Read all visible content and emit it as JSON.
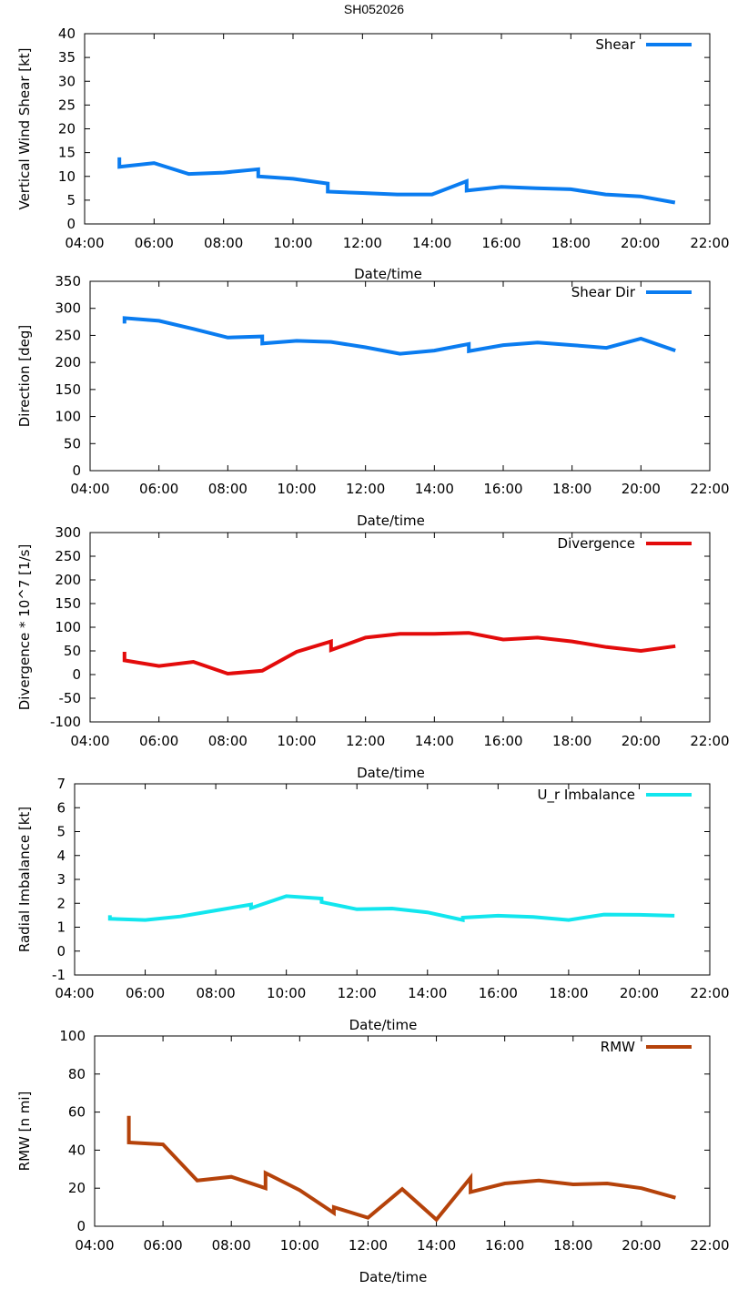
{
  "title": "SH052026",
  "colors": {
    "shear": "#0a7cf0",
    "divergence": "#e30b0b",
    "imbalance": "#12e6ee",
    "rmw": "#b5420a"
  },
  "chart_data": [
    {
      "type": "line",
      "ylabel": "Vertical Wind Shear [kt]",
      "xlabel": "Date/time",
      "xlim": [
        4,
        22
      ],
      "ylim": [
        0,
        40
      ],
      "xticks": [
        4,
        6,
        8,
        10,
        12,
        14,
        16,
        18,
        20,
        22
      ],
      "xtick_labels": [
        "04:00",
        "06:00",
        "08:00",
        "10:00",
        "12:00",
        "14:00",
        "16:00",
        "18:00",
        "20:00",
        "22:00"
      ],
      "yticks": [
        0,
        5,
        10,
        15,
        20,
        25,
        30,
        35,
        40
      ],
      "ytick_labels": [
        "0",
        "5",
        "10",
        "15",
        "20",
        "25",
        "30",
        "35",
        "40"
      ],
      "series": [
        {
          "name": "Shear",
          "color": "#0a7cf0",
          "x": [
            5.0,
            5.0,
            6.0,
            7.0,
            8.0,
            9.0,
            9.0,
            10.0,
            11.0,
            11.0,
            12.0,
            13.0,
            14.0,
            15.0,
            15.0,
            16.0,
            17.0,
            18.0,
            19.0,
            20.0,
            21.0
          ],
          "y": [
            14.0,
            12.0,
            12.8,
            10.5,
            10.8,
            11.5,
            10.0,
            9.5,
            8.5,
            6.8,
            6.5,
            6.2,
            6.2,
            9.0,
            7.0,
            7.8,
            7.5,
            7.3,
            6.2,
            5.8,
            4.5
          ]
        }
      ]
    },
    {
      "type": "line",
      "ylabel": "Direction [deg]",
      "xlabel": "Date/time",
      "xlim": [
        4,
        22
      ],
      "ylim": [
        0,
        350
      ],
      "xticks": [
        4,
        6,
        8,
        10,
        12,
        14,
        16,
        18,
        20,
        22
      ],
      "xtick_labels": [
        "04:00",
        "06:00",
        "08:00",
        "10:00",
        "12:00",
        "14:00",
        "16:00",
        "18:00",
        "20:00",
        "22:00"
      ],
      "yticks": [
        0,
        50,
        100,
        150,
        200,
        250,
        300,
        350
      ],
      "ytick_labels": [
        "0",
        "50",
        "100",
        "150",
        "200",
        "250",
        "300",
        "350"
      ],
      "series": [
        {
          "name": "Shear Dir",
          "color": "#0a7cf0",
          "x": [
            5.0,
            5.0,
            6.0,
            7.0,
            8.0,
            9.0,
            9.0,
            10.0,
            11.0,
            12.0,
            13.0,
            14.0,
            15.0,
            15.0,
            16.0,
            17.0,
            18.0,
            19.0,
            20.0,
            21.0
          ],
          "y": [
            272,
            282,
            277,
            262,
            246,
            248,
            235,
            240,
            238,
            228,
            216,
            222,
            234,
            221,
            232,
            237,
            232,
            227,
            244,
            222
          ]
        }
      ]
    },
    {
      "type": "line",
      "ylabel": "Divergence * 10^7 [1/s]",
      "xlabel": "Date/time",
      "xlim": [
        4,
        22
      ],
      "ylim": [
        -100,
        300
      ],
      "xticks": [
        4,
        6,
        8,
        10,
        12,
        14,
        16,
        18,
        20,
        22
      ],
      "xtick_labels": [
        "04:00",
        "06:00",
        "08:00",
        "10:00",
        "12:00",
        "14:00",
        "16:00",
        "18:00",
        "20:00",
        "22:00"
      ],
      "yticks": [
        -100,
        -50,
        0,
        50,
        100,
        150,
        200,
        250,
        300
      ],
      "ytick_labels": [
        "-100",
        "-50",
        "0",
        "50",
        "100",
        "150",
        "200",
        "250",
        "300"
      ],
      "series": [
        {
          "name": "Divergence",
          "color": "#e30b0b",
          "x": [
            5.0,
            5.0,
            6.0,
            7.0,
            8.0,
            9.0,
            10.0,
            11.0,
            11.0,
            12.0,
            13.0,
            14.0,
            15.0,
            16.0,
            17.0,
            18.0,
            19.0,
            20.0,
            21.0
          ],
          "y": [
            48,
            30,
            18,
            27,
            2,
            8,
            48,
            70,
            52,
            78,
            86,
            86,
            88,
            74,
            78,
            70,
            58,
            50,
            60
          ]
        }
      ]
    },
    {
      "type": "line",
      "ylabel": "Radial Imbalance [kt]",
      "xlabel": "Date/time",
      "xlim": [
        4,
        22
      ],
      "ylim": [
        -1,
        7
      ],
      "xticks": [
        4,
        6,
        8,
        10,
        12,
        14,
        16,
        18,
        20,
        22
      ],
      "xtick_labels": [
        "04:00",
        "06:00",
        "08:00",
        "10:00",
        "12:00",
        "14:00",
        "16:00",
        "18:00",
        "20:00",
        "22:00"
      ],
      "yticks": [
        -1,
        0,
        1,
        2,
        3,
        4,
        5,
        6,
        7
      ],
      "ytick_labels": [
        "-1",
        "0",
        "1",
        "2",
        "3",
        "4",
        "5",
        "6",
        "7"
      ],
      "series": [
        {
          "name": "U_r Imbalance",
          "color": "#12e6ee",
          "x": [
            5.0,
            5.0,
            6.0,
            7.0,
            8.0,
            9.0,
            9.0,
            10.0,
            11.0,
            11.0,
            12.0,
            13.0,
            14.0,
            15.0,
            15.0,
            16.0,
            17.0,
            18.0,
            19.0,
            20.0,
            21.0
          ],
          "y": [
            1.5,
            1.35,
            1.3,
            1.45,
            1.7,
            1.95,
            1.8,
            2.3,
            2.2,
            2.05,
            1.75,
            1.78,
            1.62,
            1.3,
            1.4,
            1.48,
            1.43,
            1.3,
            1.53,
            1.52,
            1.48
          ]
        }
      ]
    },
    {
      "type": "line",
      "ylabel": "RMW [n mi]",
      "xlabel": "Date/time",
      "xlim": [
        4,
        22
      ],
      "ylim": [
        0,
        100
      ],
      "xticks": [
        4,
        6,
        8,
        10,
        12,
        14,
        16,
        18,
        20,
        22
      ],
      "xtick_labels": [
        "04:00",
        "06:00",
        "08:00",
        "10:00",
        "12:00",
        "14:00",
        "16:00",
        "18:00",
        "20:00",
        "22:00"
      ],
      "yticks": [
        0,
        20,
        40,
        60,
        80,
        100
      ],
      "ytick_labels": [
        "0",
        "20",
        "40",
        "60",
        "80",
        "100"
      ],
      "series": [
        {
          "name": "RMW",
          "color": "#b5420a",
          "x": [
            5.0,
            5.0,
            6.0,
            7.0,
            8.0,
            9.0,
            9.0,
            10.0,
            11.0,
            11.0,
            12.0,
            13.0,
            14.0,
            15.0,
            15.0,
            16.0,
            17.0,
            18.0,
            19.0,
            20.0,
            21.0
          ],
          "y": [
            58,
            44,
            43,
            24,
            26,
            20,
            28,
            19,
            7,
            10,
            4.5,
            19.5,
            3.5,
            25.5,
            18,
            22.5,
            24,
            22,
            22.5,
            20,
            15
          ]
        }
      ]
    }
  ]
}
